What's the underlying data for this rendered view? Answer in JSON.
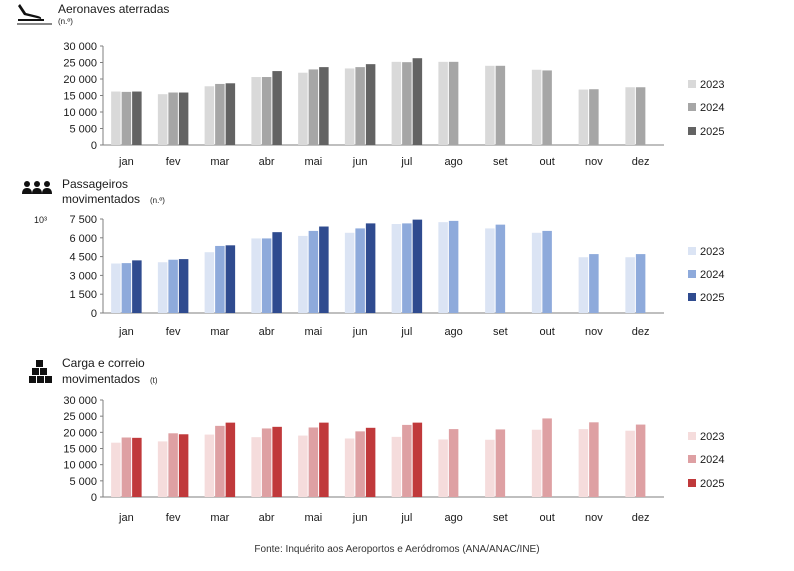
{
  "source_note": "Fonte: Inquérito aos Aeroportos e Aeródromos (ANA/ANAC/INE)",
  "chart_data": [
    {
      "type": "bar",
      "icon": "airplane-landing-icon",
      "title": "Aeronaves aterradas",
      "unit": "(n.º)",
      "ylabel_prefix": "",
      "categories": [
        "jan",
        "fev",
        "mar",
        "abr",
        "mai",
        "jun",
        "jul",
        "ago",
        "set",
        "out",
        "nov",
        "dez"
      ],
      "ylim": [
        0,
        30000
      ],
      "yticks": [
        0,
        5000,
        10000,
        15000,
        20000,
        25000,
        30000
      ],
      "ytick_labels": [
        "0",
        "5 000",
        "10 000",
        "15 000",
        "20 000",
        "25 000",
        "30 000"
      ],
      "legend_position": "right",
      "series": [
        {
          "name": "2023",
          "color": "#d9d9d9",
          "values": [
            16200,
            15400,
            17800,
            20600,
            21900,
            23200,
            25200,
            25200,
            24000,
            22800,
            16800,
            17500
          ]
        },
        {
          "name": "2024",
          "color": "#a6a6a6",
          "values": [
            16100,
            15900,
            18500,
            20600,
            22900,
            23600,
            25100,
            25200,
            24000,
            22600,
            16900,
            17500
          ]
        },
        {
          "name": "2025",
          "color": "#636363",
          "values": [
            16200,
            15900,
            18700,
            22400,
            23600,
            24500,
            26300,
            null,
            null,
            null,
            null,
            null
          ]
        }
      ]
    },
    {
      "type": "bar",
      "icon": "passengers-icon",
      "title": "Passageiros",
      "title_line2": "movimentados",
      "unit": "(n.º)",
      "ylabel_prefix": "10³",
      "categories": [
        "jan",
        "fev",
        "mar",
        "abr",
        "mai",
        "jun",
        "jul",
        "ago",
        "set",
        "out",
        "nov",
        "dez"
      ],
      "ylim": [
        0,
        7500
      ],
      "yticks": [
        0,
        1500,
        3000,
        4500,
        6000,
        7500
      ],
      "ytick_labels": [
        "0",
        "1 500",
        "3 000",
        "4 500",
        "6 000",
        "7 500"
      ],
      "legend_position": "right",
      "series": [
        {
          "name": "2023",
          "color": "#dbe4f4",
          "values": [
            3950,
            4050,
            4850,
            5950,
            6150,
            6400,
            7100,
            7250,
            6750,
            6400,
            4450,
            4450
          ]
        },
        {
          "name": "2024",
          "color": "#8eaadb",
          "values": [
            3980,
            4250,
            5350,
            5950,
            6550,
            6750,
            7150,
            7350,
            7050,
            6550,
            4700,
            4700
          ]
        },
        {
          "name": "2025",
          "color": "#2f4b8f",
          "values": [
            4200,
            4300,
            5400,
            6450,
            6900,
            7150,
            7450,
            null,
            null,
            null,
            null,
            null
          ]
        }
      ]
    },
    {
      "type": "bar",
      "icon": "cargo-boxes-icon",
      "title": "Carga e correio",
      "title_line2": "movimentados",
      "unit": "(t)",
      "ylabel_prefix": "",
      "categories": [
        "jan",
        "fev",
        "mar",
        "abr",
        "mai",
        "jun",
        "jul",
        "ago",
        "set",
        "out",
        "nov",
        "dez"
      ],
      "ylim": [
        0,
        30000
      ],
      "yticks": [
        0,
        5000,
        10000,
        15000,
        20000,
        25000,
        30000
      ],
      "ytick_labels": [
        "0",
        "5 000",
        "10 000",
        "15 000",
        "20 000",
        "25 000",
        "30 000"
      ],
      "legend_position": "right",
      "series": [
        {
          "name": "2023",
          "color": "#f5dcdc",
          "values": [
            16800,
            17200,
            19300,
            18500,
            19000,
            18100,
            18600,
            17800,
            17700,
            20800,
            21000,
            20500
          ]
        },
        {
          "name": "2024",
          "color": "#dea0a3",
          "values": [
            18400,
            19700,
            22000,
            21200,
            21500,
            20300,
            22300,
            21000,
            20900,
            24300,
            23100,
            22400
          ]
        },
        {
          "name": "2025",
          "color": "#c0393b",
          "values": [
            18300,
            19400,
            23000,
            21700,
            23000,
            21400,
            23000,
            null,
            null,
            null,
            null,
            null
          ]
        }
      ]
    }
  ]
}
